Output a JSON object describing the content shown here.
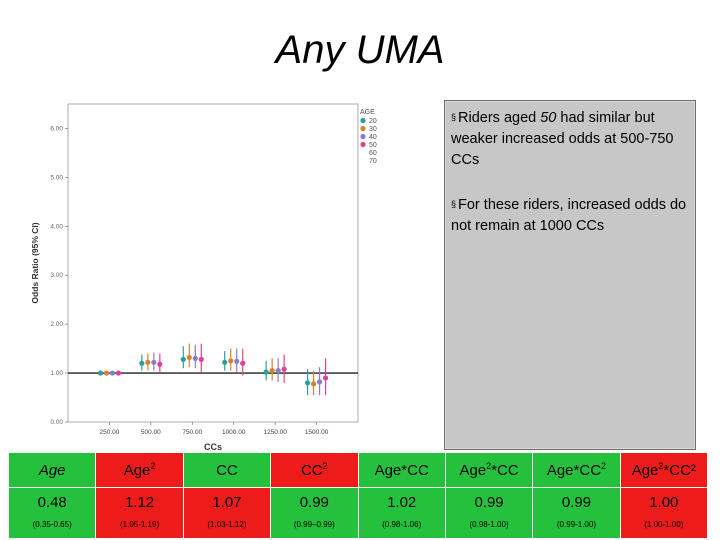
{
  "title": "Any UMA",
  "callout": {
    "bullet": "§",
    "p1_before": "Riders aged ",
    "p1_age": "50",
    "p1_after": " had similar but weaker increased odds at 500-750 CCs",
    "p2": "For these riders, increased odds do not remain at 1000 CCs"
  },
  "chart_data": {
    "type": "scatter",
    "title": "",
    "xlabel": "CCs",
    "ylabel": "Odds Ratio (95% CI)",
    "xlim": [
      0,
      1750
    ],
    "ylim": [
      0,
      6.5
    ],
    "xticks": [
      "250.00",
      "500.00",
      "750.00",
      "1000.00",
      "1250.00",
      "1500.00"
    ],
    "xtick_values": [
      250,
      500,
      750,
      1000,
      1250,
      1500
    ],
    "yticks": [
      "0.00",
      "1.00",
      "2.00",
      "3.00",
      "4.00",
      "5.00",
      "6.00"
    ],
    "ytick_values": [
      0,
      1,
      2,
      3,
      4,
      5,
      6
    ],
    "reference_line": 1.0,
    "legend": {
      "title": "AGE",
      "position": "top-right",
      "entries": [
        {
          "label": "20",
          "color": "#2aa198"
        },
        {
          "label": "30",
          "color": "#d9822b"
        },
        {
          "label": "40",
          "color": "#8a7cc6"
        },
        {
          "label": "50",
          "color": "#e0409a"
        },
        {
          "label": "60",
          "color": ""
        },
        {
          "label": "70",
          "color": ""
        }
      ]
    },
    "series": [
      {
        "name": "20",
        "color": "#2aa198",
        "points": [
          {
            "x": 250,
            "y": 1.0,
            "lo": 0.95,
            "hi": 1.05
          },
          {
            "x": 500,
            "y": 1.2,
            "lo": 1.05,
            "hi": 1.38
          },
          {
            "x": 750,
            "y": 1.28,
            "lo": 1.1,
            "hi": 1.55
          },
          {
            "x": 1000,
            "y": 1.22,
            "lo": 1.05,
            "hi": 1.45
          },
          {
            "x": 1250,
            "y": 1.02,
            "lo": 0.85,
            "hi": 1.25
          },
          {
            "x": 1500,
            "y": 0.8,
            "lo": 0.55,
            "hi": 1.08
          }
        ]
      },
      {
        "name": "30",
        "color": "#d9822b",
        "points": [
          {
            "x": 250,
            "y": 1.0,
            "lo": 0.95,
            "hi": 1.05
          },
          {
            "x": 500,
            "y": 1.22,
            "lo": 1.06,
            "hi": 1.4
          },
          {
            "x": 750,
            "y": 1.32,
            "lo": 1.12,
            "hi": 1.6
          },
          {
            "x": 1000,
            "y": 1.25,
            "lo": 1.05,
            "hi": 1.5
          },
          {
            "x": 1250,
            "y": 1.05,
            "lo": 0.85,
            "hi": 1.3
          },
          {
            "x": 1500,
            "y": 0.78,
            "lo": 0.55,
            "hi": 1.05
          }
        ]
      },
      {
        "name": "40",
        "color": "#8a7cc6",
        "points": [
          {
            "x": 250,
            "y": 1.0,
            "lo": 0.95,
            "hi": 1.05
          },
          {
            "x": 500,
            "y": 1.22,
            "lo": 1.05,
            "hi": 1.42
          },
          {
            "x": 750,
            "y": 1.3,
            "lo": 1.1,
            "hi": 1.58
          },
          {
            "x": 1000,
            "y": 1.24,
            "lo": 1.02,
            "hi": 1.5
          },
          {
            "x": 1250,
            "y": 1.05,
            "lo": 0.82,
            "hi": 1.3
          },
          {
            "x": 1500,
            "y": 0.82,
            "lo": 0.55,
            "hi": 1.12
          }
        ]
      },
      {
        "name": "50",
        "color": "#e0409a",
        "points": [
          {
            "x": 250,
            "y": 1.0,
            "lo": 0.95,
            "hi": 1.05
          },
          {
            "x": 500,
            "y": 1.18,
            "lo": 1.0,
            "hi": 1.4
          },
          {
            "x": 750,
            "y": 1.28,
            "lo": 1.02,
            "hi": 1.6
          },
          {
            "x": 1000,
            "y": 1.2,
            "lo": 0.95,
            "hi": 1.5
          },
          {
            "x": 1250,
            "y": 1.08,
            "lo": 0.8,
            "hi": 1.38
          },
          {
            "x": 1500,
            "y": 0.9,
            "lo": 0.55,
            "hi": 1.3
          }
        ]
      }
    ]
  },
  "stats_table": {
    "headers": [
      {
        "text": "Age",
        "sup": "",
        "text2": ""
      },
      {
        "text": "Age",
        "sup": "2",
        "text2": ""
      },
      {
        "text": "CC",
        "sup": "",
        "text2": ""
      },
      {
        "text": "CC",
        "sup": "2",
        "text2": ""
      },
      {
        "text": "Age*CC",
        "sup": "",
        "text2": ""
      },
      {
        "text": "Age",
        "sup": "2",
        "text2": "*CC"
      },
      {
        "text": "Age*CC",
        "sup": "2",
        "text2": ""
      },
      {
        "text": "Age",
        "sup": "2",
        "text2": "*CC²"
      }
    ],
    "header_colors": [
      "#24c13c",
      "#ee1b1b",
      "#24c13c",
      "#ee1b1b",
      "#24c13c",
      "#24c13c",
      "#24c13c",
      "#ee1b1b"
    ],
    "values": [
      "0.48",
      "1.12",
      "1.07",
      "0.99",
      "1.02",
      "0.99",
      "0.99",
      "1.00"
    ],
    "cis": [
      "(0.35-0.65)",
      "(1.05-1.19)",
      "(1.03-1.12)",
      "(0.99–0.99)",
      "(0.98-1.06)",
      "(0.98-1.00)",
      "(0.99-1.00)",
      "(1.00-1.00)"
    ],
    "value_colors": [
      "#24c13c",
      "#ee1b1b",
      "#ee1b1b",
      "#24c13c",
      "#24c13c",
      "#24c13c",
      "#24c13c",
      "#ee1b1b"
    ]
  }
}
